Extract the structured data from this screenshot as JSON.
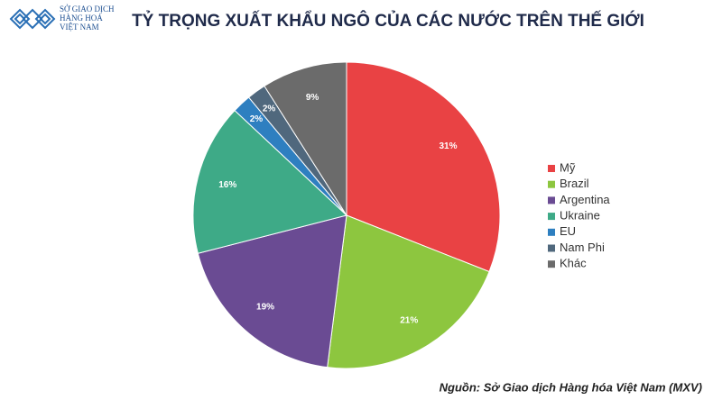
{
  "logo": {
    "lines": [
      "SỞ GIAO DỊCH",
      "HÀNG HOÁ",
      "VIỆT NAM"
    ]
  },
  "chart_data": {
    "type": "pie",
    "title": "TỶ TRỌNG XUẤT KHẨU NGÔ CỦA CÁC NƯỚC TRÊN THẾ GIỚI",
    "categories": [
      "Mỹ",
      "Brazil",
      "Argentina",
      "Ukraine",
      "EU",
      "Nam Phi",
      "Khác"
    ],
    "values": [
      31,
      21,
      19,
      16,
      2,
      2,
      9
    ],
    "value_labels": [
      "31%",
      "21%",
      "19%",
      "16%",
      "2%",
      "2%",
      "9%"
    ],
    "colors": [
      "#e94244",
      "#8dc63f",
      "#6a4b93",
      "#3eaa87",
      "#2e7fc0",
      "#50687d",
      "#6b6b6b"
    ],
    "legend": "right",
    "source": "Nguồn: Sở Giao dịch Hàng hóa Việt Nam (MXV)"
  }
}
